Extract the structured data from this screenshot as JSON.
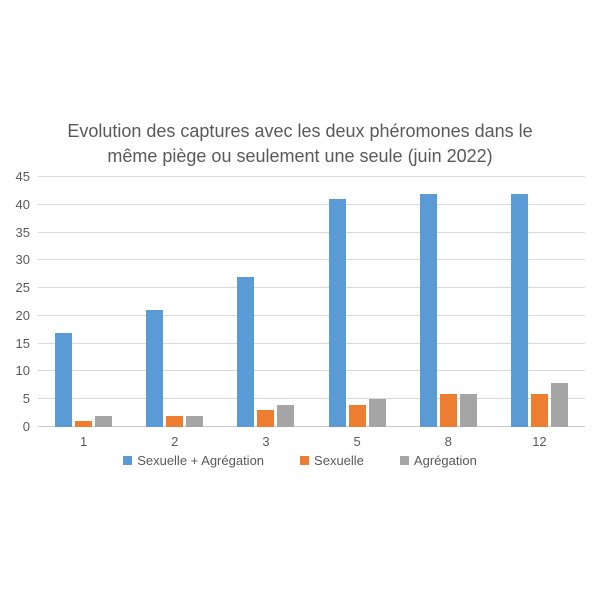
{
  "chart_data": {
    "type": "bar",
    "title": "Evolution des captures avec les deux phéromones dans le même piège ou seulement une seule (juin 2022)",
    "categories": [
      "1",
      "2",
      "3",
      "5",
      "8",
      "12"
    ],
    "series": [
      {
        "name": "Sexuelle + Agrégation",
        "color": "#5B9BD5",
        "values": [
          17,
          21,
          27,
          41,
          42,
          42
        ]
      },
      {
        "name": "Sexuelle",
        "color": "#ED7D31",
        "values": [
          1,
          2,
          3,
          4,
          6,
          6
        ]
      },
      {
        "name": "Agrégation",
        "color": "#A5A5A5",
        "values": [
          2,
          2,
          4,
          5,
          6,
          8
        ]
      }
    ],
    "xlabel": "",
    "ylabel": "",
    "ylim": [
      0,
      45
    ],
    "yticks": [
      0,
      5,
      10,
      15,
      20,
      25,
      30,
      35,
      40,
      45
    ],
    "grid": true,
    "legend_position": "bottom"
  },
  "colors": {
    "text": "#595959",
    "gridline": "#D9D9D9",
    "axis_line": "#C9C9C9",
    "background": "#FFFFFF"
  }
}
